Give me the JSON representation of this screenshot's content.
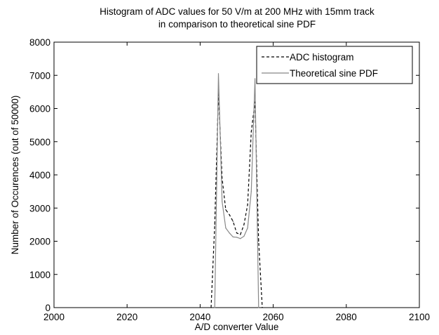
{
  "chart_data": {
    "type": "line",
    "title": "Histogram of ADC values for 50 V/m at 200 MHz with 15mm track",
    "subtitle": "in comparison to theoretical sine PDF",
    "xlabel": "A/D converter Value",
    "ylabel": "Number of Occurences (out of 50000)",
    "xlim": [
      2000,
      2100
    ],
    "ylim": [
      0,
      8000
    ],
    "xticks": [
      "2000",
      "2020",
      "2040",
      "2060",
      "2080",
      "2100"
    ],
    "yticks": [
      "0",
      "1000",
      "2000",
      "3000",
      "4000",
      "5000",
      "6000",
      "7000",
      "8000"
    ],
    "grid": false,
    "legend_position": "top-right",
    "series": [
      {
        "name": "ADC histogram",
        "style": "dashed",
        "color": "#000000",
        "x": [
          2043,
          2044,
          2045,
          2046,
          2047,
          2048,
          2049,
          2050,
          2051,
          2052,
          2053,
          2054,
          2055,
          2056,
          2057
        ],
        "y": [
          0,
          2500,
          6500,
          3900,
          2950,
          2800,
          2600,
          2250,
          2200,
          2500,
          3100,
          5300,
          6200,
          2000,
          0
        ]
      },
      {
        "name": "Theoretical sine PDF",
        "style": "solid",
        "color": "#888888",
        "x": [
          2044,
          2045,
          2046,
          2047,
          2048,
          2049,
          2050,
          2051,
          2052,
          2053,
          2054,
          2055,
          2056
        ],
        "y": [
          0,
          7050,
          3200,
          2400,
          2250,
          2130,
          2120,
          2080,
          2150,
          2400,
          3500,
          6900,
          0
        ]
      }
    ]
  }
}
